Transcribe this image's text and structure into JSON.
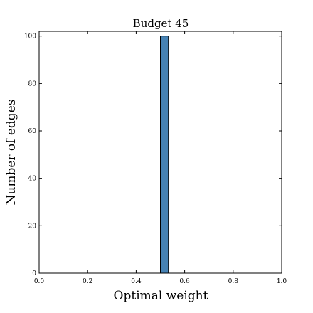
{
  "chart_data": {
    "type": "bar",
    "title": "Budget 45",
    "xlabel": "Optimal weight",
    "ylabel": "Number of edges",
    "xlim": [
      0.0,
      1.0
    ],
    "ylim": [
      0,
      102
    ],
    "x_ticks": [
      {
        "value": 0.0,
        "label": "0.0"
      },
      {
        "value": 0.2,
        "label": "0.2"
      },
      {
        "value": 0.4,
        "label": "0.4"
      },
      {
        "value": 0.6,
        "label": "0.6"
      },
      {
        "value": 0.8,
        "label": "0.8"
      },
      {
        "value": 1.0,
        "label": "1.0"
      }
    ],
    "y_ticks": [
      {
        "value": 0,
        "label": "0"
      },
      {
        "value": 20,
        "label": "20"
      },
      {
        "value": 40,
        "label": "40"
      },
      {
        "value": 60,
        "label": "60"
      },
      {
        "value": 80,
        "label": "80"
      },
      {
        "value": 100,
        "label": "100"
      }
    ],
    "bins": [
      {
        "x_start": 0.5,
        "x_end": 0.533,
        "value": 100
      }
    ],
    "bar_color": "#4682b4",
    "grid": false,
    "legend": "none"
  }
}
